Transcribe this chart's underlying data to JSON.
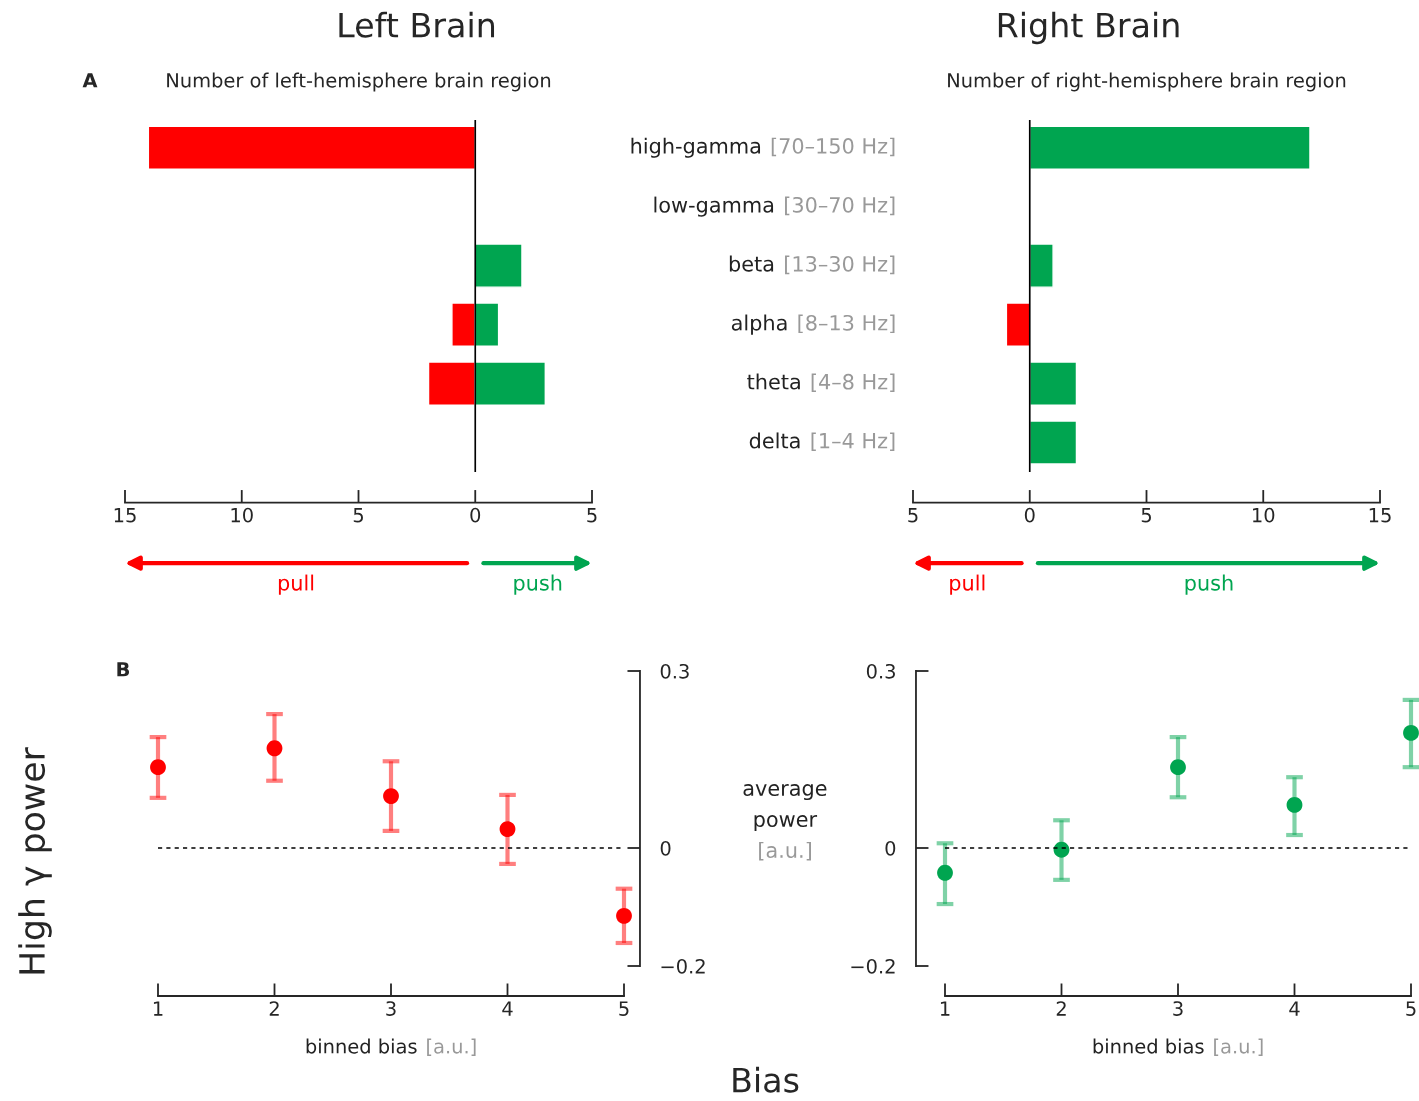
{
  "chart_data": [
    {
      "type": "bar",
      "orientation": "horizontal",
      "title": "Left Brain",
      "subtitle": "Number of left-hemisphere brain region",
      "categories": [
        "high-gamma [70–150 Hz]",
        "low-gamma [30–70 Hz]",
        "beta [13–30 Hz]",
        "alpha [8–13 Hz]",
        "theta [4–8 Hz]",
        "delta [1–4 Hz]"
      ],
      "series": [
        {
          "name": "pull",
          "color": "#ff0000",
          "values": [
            -14,
            null,
            null,
            -1,
            -2,
            null
          ]
        },
        {
          "name": "push",
          "color": "#00a550",
          "values": [
            null,
            null,
            2,
            1,
            3,
            null
          ]
        }
      ],
      "xlim": [
        -15,
        5
      ],
      "xticks": [
        {
          "value": -15,
          "label": "15"
        },
        {
          "value": -10,
          "label": "10"
        },
        {
          "value": -5,
          "label": "5"
        },
        0,
        5
      ],
      "ref_lines": [
        {
          "axis": "x",
          "value": 0,
          "color": "#000000",
          "line_style": "solid"
        }
      ],
      "legend": "bottom",
      "grid": false,
      "annotations": [
        "A"
      ]
    },
    {
      "type": "bar",
      "orientation": "horizontal",
      "title": "Right Brain",
      "subtitle": "Number of right-hemisphere brain region",
      "categories": [
        null,
        null,
        null,
        null,
        null,
        null
      ],
      "series": [
        {
          "name": "pull",
          "color": "#ff0000",
          "values": [
            null,
            null,
            null,
            -1,
            null,
            null
          ]
        },
        {
          "name": "push",
          "color": "#00a550",
          "values": [
            12,
            null,
            1,
            null,
            2,
            2
          ]
        }
      ],
      "xlim": [
        -5,
        15
      ],
      "xticks": [
        {
          "value": -5,
          "label": "5"
        },
        0,
        5,
        10,
        15
      ],
      "ref_lines": [
        {
          "axis": "x",
          "value": 0,
          "color": "#000000",
          "line_style": "solid"
        }
      ],
      "tick_labels": "x",
      "legend": "bottom",
      "grid": false
    },
    {
      "type": "scatter",
      "xlabel": "binned bias [a.u.]",
      "ylabel": "average\npower\n[a.u.]",
      "x": [
        1,
        2,
        3,
        4,
        5
      ],
      "series": [
        {
          "color": "#ff0000",
          "values": [
            0.137,
            0.169,
            0.088,
            0.032,
            -0.115
          ],
          "errors": [
            [
              0.085,
              0.188
            ],
            [
              0.114,
              0.227
            ],
            [
              0.029,
              0.147
            ],
            [
              -0.027,
              0.09
            ],
            [
              -0.161,
              -0.069
            ]
          ]
        }
      ],
      "xlim": [
        1,
        5
      ],
      "xticks": [
        1,
        2,
        3,
        4,
        5
      ],
      "ylim": [
        -0.2,
        0.3
      ],
      "yticks": [
        {
          "value": -0.2,
          "label": "−0.2"
        },
        0,
        0.3
      ],
      "ref_lines": [
        {
          "axis": "y",
          "value": 0,
          "color": "#000000",
          "line_style": "dashed"
        }
      ],
      "marker": "circle",
      "grid": false,
      "annotations": [
        "B",
        "High γ power",
        "Bias"
      ]
    },
    {
      "type": "scatter",
      "xlabel": "binned bias [a.u.]",
      "x": [
        1,
        2,
        3,
        4,
        5
      ],
      "series": [
        {
          "color": "#00a550",
          "values": [
            -0.042,
            -0.003,
            0.137,
            0.073,
            0.195
          ],
          "errors": [
            [
              -0.095,
              0.008
            ],
            [
              -0.054,
              0.047
            ],
            [
              0.086,
              0.188
            ],
            [
              0.022,
              0.12
            ],
            [
              0.137,
              0.251
            ]
          ]
        }
      ],
      "xlim": [
        1,
        5
      ],
      "xticks": [
        1,
        2,
        3,
        4,
        5
      ],
      "ylim": [
        -0.2,
        0.3
      ],
      "yticks": [
        {
          "value": -0.2,
          "label": "−0.2"
        },
        0,
        0.3
      ],
      "ref_lines": [
        {
          "axis": "y",
          "value": 0,
          "color": "#000000",
          "line_style": "dashed"
        }
      ],
      "marker": "circle",
      "grid": false
    }
  ]
}
